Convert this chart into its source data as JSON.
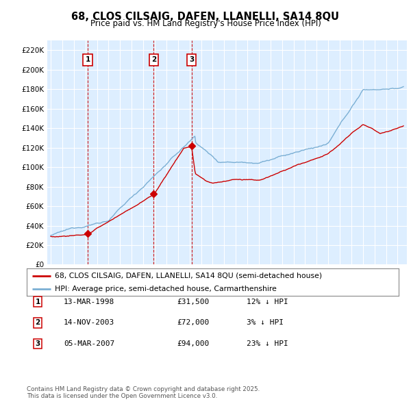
{
  "title": "68, CLOS CILSAIG, DAFEN, LLANELLI, SA14 8QU",
  "subtitle": "Price paid vs. HM Land Registry's House Price Index (HPI)",
  "plot_bg_color": "#ddeeff",
  "ylim": [
    0,
    230000
  ],
  "yticks": [
    0,
    20000,
    40000,
    60000,
    80000,
    100000,
    120000,
    140000,
    160000,
    180000,
    200000,
    220000
  ],
  "ytick_labels": [
    "£0",
    "£20K",
    "£40K",
    "£60K",
    "£80K",
    "£100K",
    "£120K",
    "£140K",
    "£160K",
    "£180K",
    "£200K",
    "£220K"
  ],
  "red_line_color": "#cc0000",
  "blue_line_color": "#7bafd4",
  "sale_marker_color": "#cc0000",
  "sales": [
    {
      "date": "13-MAR-1998",
      "year": 1998.2,
      "price": 31500,
      "label": "1",
      "pct": "12%"
    },
    {
      "date": "14-NOV-2003",
      "year": 2003.9,
      "price": 72000,
      "label": "2",
      "pct": "3%"
    },
    {
      "date": "05-MAR-2007",
      "year": 2007.18,
      "price": 94000,
      "label": "3",
      "pct": "23%"
    }
  ],
  "legend_line1": "68, CLOS CILSAIG, DAFEN, LLANELLI, SA14 8QU (semi-detached house)",
  "legend_line2": "HPI: Average price, semi-detached house, Carmarthenshire",
  "footer": "Contains HM Land Registry data © Crown copyright and database right 2025.\nThis data is licensed under the Open Government Licence v3.0.",
  "table_rows": [
    {
      "num": "1",
      "date": "13-MAR-1998",
      "price": "£31,500",
      "pct": "12% ↓ HPI"
    },
    {
      "num": "2",
      "date": "14-NOV-2003",
      "price": "£72,000",
      "pct": "3% ↓ HPI"
    },
    {
      "num": "3",
      "date": "05-MAR-2007",
      "price": "£94,000",
      "pct": "23% ↓ HPI"
    }
  ]
}
